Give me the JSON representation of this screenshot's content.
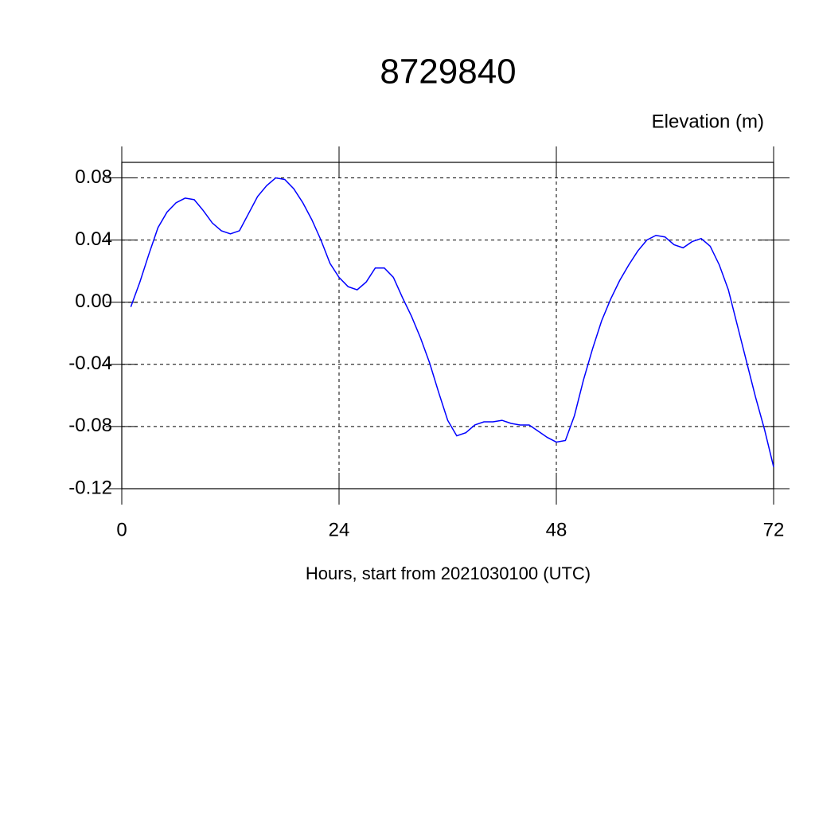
{
  "chart_data": {
    "type": "line",
    "title": "8729840",
    "subtitle": "Elevation (m)",
    "x_label": "Hours, start from 2021030100 (UTC)",
    "x": [
      1,
      2,
      3,
      4,
      5,
      6,
      7,
      8,
      9,
      10,
      11,
      12,
      13,
      14,
      15,
      16,
      17,
      18,
      19,
      20,
      21,
      22,
      23,
      24,
      25,
      26,
      27,
      28,
      29,
      30,
      31,
      32,
      33,
      34,
      35,
      36,
      37,
      38,
      39,
      40,
      41,
      42,
      43,
      44,
      45,
      46,
      47,
      48,
      49,
      50,
      51,
      52,
      53,
      54,
      55,
      56,
      57,
      58,
      59,
      60,
      61,
      62,
      63,
      64,
      65,
      66,
      67,
      68,
      69,
      70,
      71,
      72
    ],
    "series": [
      {
        "name": "Elevation",
        "color": "#0000ff",
        "values": [
          -0.003,
          0.013,
          0.031,
          0.048,
          0.058,
          0.064,
          0.067,
          0.066,
          0.059,
          0.051,
          0.046,
          0.044,
          0.046,
          0.057,
          0.068,
          0.075,
          0.08,
          0.079,
          0.073,
          0.064,
          0.053,
          0.04,
          0.025,
          0.016,
          0.01,
          0.008,
          0.013,
          0.022,
          0.022,
          0.016,
          0.003,
          -0.009,
          -0.023,
          -0.039,
          -0.058,
          -0.076,
          -0.086,
          -0.084,
          -0.079,
          -0.077,
          -0.077,
          -0.076,
          -0.078,
          -0.079,
          -0.079,
          -0.083,
          -0.087,
          -0.09,
          -0.089,
          -0.073,
          -0.05,
          -0.03,
          -0.012,
          0.002,
          0.014,
          0.024,
          0.033,
          0.04,
          0.043,
          0.042,
          0.037,
          0.035,
          0.039,
          0.041,
          0.036,
          0.024,
          0.008,
          -0.015,
          -0.038,
          -0.061,
          -0.082,
          -0.106
        ]
      }
    ],
    "xlim": [
      0,
      72
    ],
    "xticks": [
      0,
      24,
      48,
      72
    ],
    "ylim": [
      -0.12,
      0.09
    ],
    "yticks": [
      {
        "value": -0.12,
        "label": "-0.12"
      },
      {
        "value": -0.08,
        "label": "-0.08"
      },
      {
        "value": -0.04,
        "label": "-0.04"
      },
      {
        "value": 0,
        "label": "0.00"
      },
      {
        "value": 0.04,
        "label": "0.04"
      },
      {
        "value": 0.08,
        "label": "0.08"
      }
    ],
    "grid": true
  }
}
